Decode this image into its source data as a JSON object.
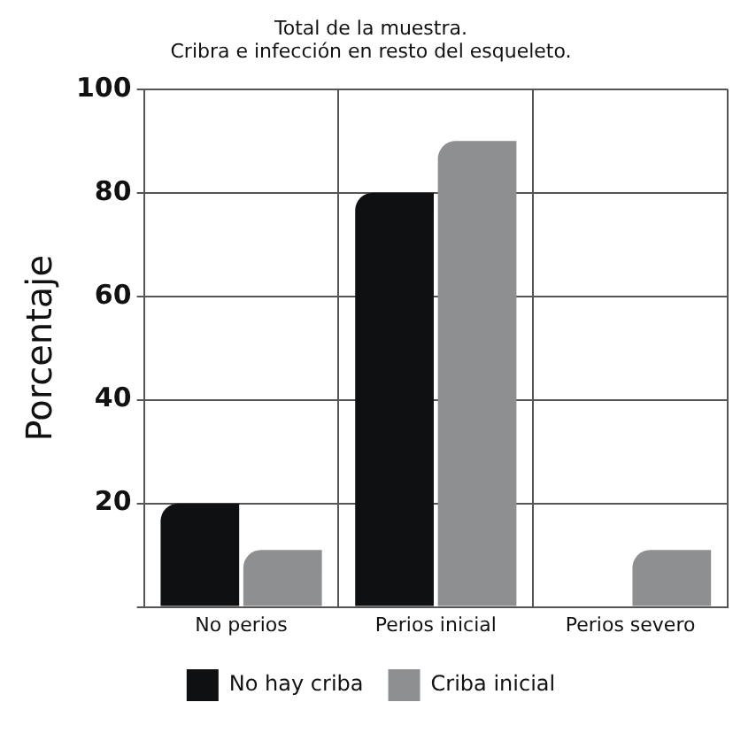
{
  "chart_data": {
    "type": "bar",
    "title": "Total de la muestra.",
    "subtitle": "Cribra e infección en resto del esqueleto.",
    "ylabel": "Porcentaje",
    "categories": [
      "No perios",
      "Perios inicial",
      "Perios severo"
    ],
    "series": [
      {
        "name": "No hay criba",
        "color": "#0e1012",
        "values": [
          20,
          80,
          0
        ]
      },
      {
        "name": "Criba inicial",
        "color": "#8e8f91",
        "values": [
          11,
          90,
          11
        ]
      }
    ],
    "ylim": [
      0,
      100
    ],
    "yticks": [
      {
        "value": 0,
        "label": null
      },
      20,
      40,
      60,
      80,
      100
    ],
    "grid": true,
    "legend": "bottom"
  }
}
